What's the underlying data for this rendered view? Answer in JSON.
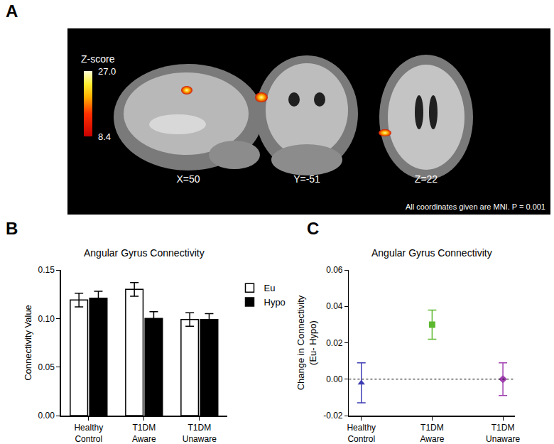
{
  "panel_labels": [
    "A",
    "B",
    "C"
  ],
  "image_panel": {
    "colorbar": {
      "title": "Z-score",
      "range": [
        8.4,
        27.0
      ],
      "ticks": [
        {
          "value": 27.0,
          "label": "27.0"
        },
        8.4
      ]
    },
    "slice_labels": [
      "X=50",
      "Y=-51",
      "Z=22"
    ],
    "note": "All coordinates given are MNI. P = 0.001"
  },
  "chart_data": [
    {
      "type": "bar",
      "title": "Angular Gyrus Connectivity",
      "y_label": "Connectivity Value",
      "categories": [
        "Healthy\nControl",
        "T1DM\nAware",
        "T1DM\nUnaware"
      ],
      "series": [
        {
          "name": "Eu",
          "color": "#ffffff",
          "values": [
            0.119,
            0.13,
            0.099
          ],
          "errors": [
            0.007,
            0.007,
            0.007
          ]
        },
        {
          "name": "Hypo",
          "color": "#000000",
          "values": [
            0.121,
            0.1,
            0.099
          ],
          "errors": [
            0.007,
            0.007,
            0.006
          ]
        }
      ],
      "ylim": [
        0,
        0.15
      ],
      "yticks": [
        {
          "value": 0,
          "label": "0.00"
        },
        {
          "value": 0.05,
          "label": "0.05"
        },
        {
          "value": 0.1,
          "label": "0.10"
        },
        {
          "value": 0.15,
          "label": "0.15"
        }
      ],
      "legend": "right",
      "grid": false
    },
    {
      "type": "scatter",
      "title": "Angular Gyrus Connectivity",
      "y_label": "Change in Connectivity\n(Eu- Hypo)",
      "categories": [
        "Healthy\nControl",
        "T1DM\nAware",
        "T1DM\nUnaware"
      ],
      "values": [
        -0.002,
        0.03,
        0.0
      ],
      "errors": [
        0.011,
        0.008,
        0.009
      ],
      "colors": [
        "#3c3cb4",
        "#5cb82e",
        "#a040b0"
      ],
      "markers": [
        "triangle-up",
        "square",
        "diamond"
      ],
      "reference_line": {
        "value": 0,
        "line_style": "dot"
      },
      "ylim": [
        -0.02,
        0.06
      ],
      "yticks": [
        {
          "value": -0.02,
          "label": "-0.02"
        },
        {
          "value": 0,
          "label": "0.00"
        },
        {
          "value": 0.02,
          "label": "0.02"
        },
        {
          "value": 0.04,
          "label": "0.04"
        },
        {
          "value": 0.06,
          "label": "0.06"
        }
      ],
      "grid": false
    }
  ]
}
